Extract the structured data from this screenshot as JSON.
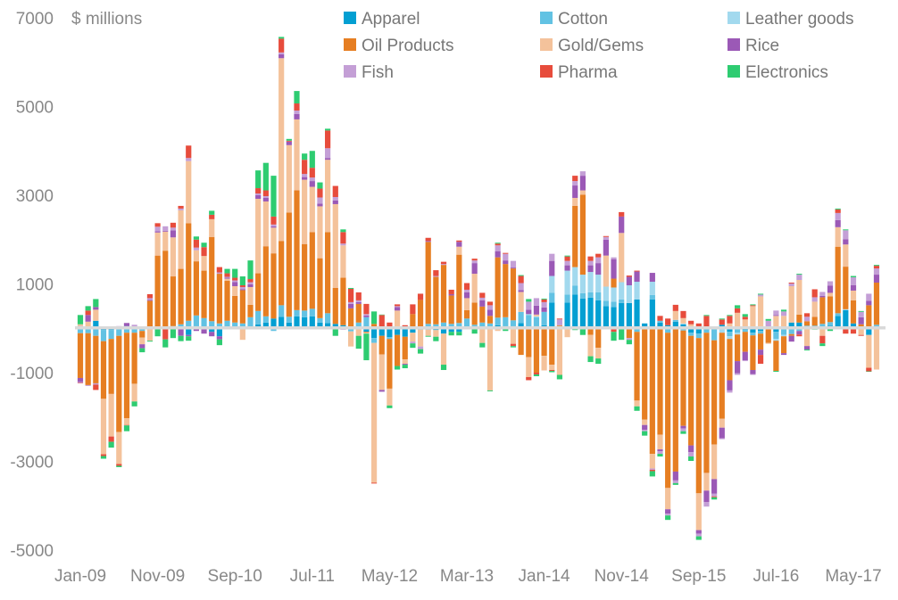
{
  "chart_data": {
    "type": "bar",
    "stacked": true,
    "ylabel": "$ millions",
    "ylim": [
      -5000,
      7000
    ],
    "yticks": [
      7000,
      5000,
      3000,
      1000,
      -1000,
      -3000,
      -5000
    ],
    "xtick_labels": [
      "Jan-09",
      "Nov-09",
      "Sep-10",
      "Jul-11",
      "May-12",
      "Mar-13",
      "Jan-14",
      "Nov-14",
      "Sep-15",
      "Jul-16",
      "May-17"
    ],
    "grid": false,
    "legend_position": "top",
    "series": [
      {
        "name": "Apparel",
        "color": "#039fd2"
      },
      {
        "name": "Cotton",
        "color": "#62c2e3"
      },
      {
        "name": "Leather goods",
        "color": "#a2d9ee"
      },
      {
        "name": "Oil Products",
        "color": "#e67e22"
      },
      {
        "name": "Gold/Gems",
        "color": "#f4c29b"
      },
      {
        "name": "Rice",
        "color": "#9b59b6"
      },
      {
        "name": "Fish",
        "color": "#c49fd6"
      },
      {
        "name": "Pharma",
        "color": "#e74c3c"
      },
      {
        "name": "Electronics",
        "color": "#2ecc71"
      }
    ],
    "categories": [
      "Jan-09",
      "Feb-09",
      "Mar-09",
      "Apr-09",
      "May-09",
      "Jun-09",
      "Jul-09",
      "Aug-09",
      "Sep-09",
      "Oct-09",
      "Nov-09",
      "Dec-09",
      "Jan-10",
      "Feb-10",
      "Mar-10",
      "Apr-10",
      "May-10",
      "Jun-10",
      "Jul-10",
      "Aug-10",
      "Sep-10",
      "Oct-10",
      "Nov-10",
      "Dec-10",
      "Jan-11",
      "Feb-11",
      "Mar-11",
      "Apr-11",
      "May-11",
      "Jun-11",
      "Jul-11",
      "Aug-11",
      "Sep-11",
      "Oct-11",
      "Nov-11",
      "Dec-11",
      "Jan-12",
      "Feb-12",
      "Mar-12",
      "Apr-12",
      "May-12",
      "Jun-12",
      "Jul-12",
      "Aug-12",
      "Sep-12",
      "Oct-12",
      "Nov-12",
      "Dec-12",
      "Jan-13",
      "Feb-13",
      "Mar-13",
      "Apr-13",
      "May-13",
      "Jun-13",
      "Jul-13",
      "Aug-13",
      "Sep-13",
      "Oct-13",
      "Nov-13",
      "Dec-13",
      "Jan-14",
      "Feb-14",
      "Mar-14",
      "Apr-14",
      "May-14",
      "Jun-14",
      "Jul-14",
      "Aug-14",
      "Sep-14",
      "Oct-14",
      "Nov-14",
      "Dec-14",
      "Jan-15",
      "Feb-15",
      "Mar-15",
      "Apr-15",
      "May-15",
      "Jun-15",
      "Jul-15",
      "Aug-15",
      "Sep-15",
      "Oct-15",
      "Nov-15",
      "Dec-15",
      "Jan-16",
      "Feb-16",
      "Mar-16",
      "Apr-16",
      "May-16",
      "Jun-16",
      "Jul-16",
      "Aug-16",
      "Sep-16",
      "Oct-16",
      "Nov-16",
      "Dec-16",
      "Jan-17",
      "Feb-17",
      "Mar-17",
      "Apr-17",
      "May-17",
      "Jun-17",
      "Jul-17",
      "Aug-17"
    ],
    "values_by_month_series_order": [
      [
        50,
        -110,
        0,
        -1010,
        40,
        -90,
        -20,
        -10,
        210
      ],
      [
        0,
        -110,
        0,
        -1170,
        150,
        150,
        -20,
        100,
        100
      ],
      [
        170,
        -170,
        0,
        -1070,
        250,
        60,
        -30,
        -120,
        180
      ],
      [
        -40,
        -250,
        0,
        -1300,
        -1250,
        0,
        0,
        -40,
        -60
      ],
      [
        -40,
        -200,
        0,
        -1240,
        -960,
        20,
        20,
        -120,
        -130
      ],
      [
        0,
        -170,
        0,
        -2170,
        -720,
        30,
        20,
        -40,
        -30
      ],
      [
        50,
        -100,
        0,
        -1930,
        -150,
        70,
        0,
        -10,
        -130
      ],
      [
        0,
        -100,
        0,
        -1150,
        -400,
        40,
        40,
        0,
        -110
      ],
      [
        0,
        -60,
        0,
        -150,
        -150,
        -90,
        20,
        0,
        -90
      ],
      [
        0,
        0,
        0,
        620,
        -280,
        20,
        40,
        90,
        -20
      ],
      [
        20,
        0,
        0,
        1620,
        520,
        30,
        100,
        80,
        -180
      ],
      [
        0,
        0,
        0,
        1750,
        430,
        20,
        100,
        -250,
        -180
      ],
      [
        0,
        50,
        0,
        1120,
        880,
        160,
        60,
        110,
        -220
      ],
      [
        0,
        90,
        0,
        1250,
        1320,
        -170,
        40,
        60,
        -120
      ],
      [
        -150,
        170,
        0,
        2200,
        1400,
        -30,
        70,
        280,
        -100
      ],
      [
        50,
        240,
        0,
        1220,
        250,
        -60,
        60,
        180,
        70
      ],
      [
        0,
        230,
        0,
        1070,
        330,
        -120,
        0,
        200,
        100
      ],
      [
        -80,
        160,
        0,
        1900,
        400,
        -100,
        0,
        100,
        90
      ],
      [
        -180,
        110,
        0,
        1120,
        0,
        -70,
        30,
        120,
        -130
      ],
      [
        0,
        170,
        0,
        900,
        50,
        20,
        20,
        80,
        100
      ],
      [
        0,
        130,
        0,
        600,
        220,
        90,
        40,
        60,
        200
      ],
      [
        0,
        110,
        0,
        750,
        -260,
        20,
        50,
        40,
        200
      ],
      [
        0,
        250,
        0,
        280,
        400,
        60,
        50,
        70,
        420
      ],
      [
        90,
        300,
        0,
        850,
        1680,
        80,
        40,
        120,
        400
      ],
      [
        130,
        140,
        0,
        1580,
        1010,
        80,
        40,
        130,
        620
      ],
      [
        220,
        -60,
        0,
        1470,
        580,
        30,
        40,
        180,
        920
      ],
      [
        260,
        260,
        0,
        1450,
        4120,
        90,
        40,
        310,
        40
      ],
      [
        130,
        130,
        0,
        2350,
        1520,
        80,
        0,
        20,
        40
      ],
      [
        270,
        140,
        0,
        2700,
        1600,
        120,
        80,
        160,
        280
      ],
      [
        250,
        150,
        0,
        1500,
        1450,
        60,
        70,
        320,
        140
      ],
      [
        270,
        170,
        0,
        1730,
        1020,
        130,
        80,
        220,
        380
      ],
      [
        130,
        100,
        0,
        1350,
        1170,
        60,
        140,
        200,
        140
      ],
      [
        120,
        220,
        0,
        1830,
        1630,
        40,
        220,
        400,
        40
      ],
      [
        100,
        0,
        0,
        810,
        1890,
        80,
        80,
        250,
        -170
      ],
      [
        70,
        0,
        0,
        1070,
        730,
        -30,
        40,
        260,
        60
      ],
      [
        0,
        -70,
        0,
        450,
        -340,
        100,
        40,
        300,
        20
      ],
      [
        0,
        130,
        0,
        420,
        -170,
        40,
        40,
        180,
        -290
      ],
      [
        -80,
        250,
        0,
        -20,
        -20,
        40,
        30,
        230,
        -600
      ],
      [
        -220,
        -110,
        0,
        100,
        -3150,
        0,
        0,
        -20,
        280
      ],
      [
        -170,
        0,
        0,
        -420,
        -800,
        -40,
        20,
        280,
        10
      ],
      [
        -200,
        -40,
        0,
        -1120,
        -380,
        0,
        0,
        130,
        -60
      ],
      [
        -150,
        0,
        0,
        -700,
        400,
        80,
        20,
        40,
        -80
      ],
      [
        -190,
        0,
        0,
        -510,
        -100,
        -20,
        0,
        70,
        -80
      ],
      [
        -100,
        0,
        0,
        320,
        -200,
        0,
        -40,
        220,
        -100
      ],
      [
        -30,
        40,
        0,
        600,
        -380,
        0,
        -60,
        140,
        -100
      ],
      [
        -30,
        100,
        0,
        1850,
        -140,
        20,
        0,
        70,
        -20
      ],
      [
        -40,
        90,
        0,
        1070,
        -150,
        0,
        20,
        130,
        -100
      ],
      [
        -120,
        130,
        0,
        1300,
        -700,
        0,
        20,
        50,
        -120
      ],
      [
        -80,
        100,
        0,
        640,
        0,
        30,
        0,
        100,
        -80
      ],
      [
        -80,
        120,
        0,
        1540,
        180,
        110,
        0,
        30,
        -80
      ],
      [
        20,
        200,
        0,
        190,
        270,
        130,
        60,
        150,
        0
      ],
      [
        0,
        80,
        0,
        500,
        650,
        240,
        60,
        40,
        -120
      ],
      [
        0,
        130,
        0,
        360,
        -330,
        140,
        60,
        110,
        -100
      ],
      [
        30,
        80,
        0,
        170,
        -1400,
        140,
        100,
        80,
        -20
      ],
      [
        70,
        170,
        0,
        1360,
        -60,
        140,
        130,
        40,
        20
      ],
      [
        50,
        200,
        0,
        1200,
        0,
        80,
        150,
        20,
        -60
      ],
      [
        50,
        130,
        0,
        1170,
        -350,
        20,
        150,
        -50,
        -30
      ],
      [
        120,
        250,
        0,
        -600,
        450,
        40,
        160,
        160,
        20
      ],
      [
        20,
        280,
        20,
        -650,
        -450,
        100,
        180,
        -70,
        60
      ],
      [
        50,
        200,
        20,
        -1000,
        40,
        200,
        170,
        -40,
        -40
      ],
      [
        70,
        300,
        0,
        -620,
        -330,
        100,
        120,
        60,
        20
      ],
      [
        580,
        220,
        380,
        -820,
        -120,
        340,
        160,
        -20,
        -30
      ],
      [
        20,
        0,
        30,
        20,
        -1050,
        0,
        130,
        20,
        -100
      ],
      [
        580,
        180,
        540,
        0,
        -200,
        120,
        100,
        100,
        20
      ],
      [
        760,
        200,
        420,
        1380,
        180,
        280,
        100,
        120,
        -40
      ],
      [
        670,
        120,
        420,
        1800,
        100,
        330,
        100,
        0,
        -150
      ],
      [
        690,
        120,
        460,
        -150,
        -480,
        150,
        100,
        100,
        -130
      ],
      [
        630,
        180,
        400,
        -440,
        -240,
        260,
        130,
        80,
        -120
      ],
      [
        500,
        120,
        320,
        0,
        700,
        360,
        60,
        20,
        0
      ],
      [
        480,
        120,
        320,
        200,
        0,
        440,
        40,
        -80,
        -200
      ],
      [
        570,
        80,
        390,
        0,
        1110,
        370,
        0,
        100,
        -260
      ],
      [
        570,
        0,
        400,
        -220,
        0,
        190,
        -40,
        30,
        -100
      ],
      [
        650,
        -80,
        400,
        -1550,
        -130,
        230,
        0,
        20,
        -100
      ],
      [
        110,
        0,
        0,
        -2060,
        -120,
        -110,
        -30,
        0,
        -100
      ],
      [
        650,
        100,
        300,
        -2830,
        -330,
        200,
        -30,
        -30,
        -120
      ],
      [
        130,
        40,
        0,
        -2400,
        -330,
        -40,
        -60,
        110,
        -60
      ],
      [
        70,
        -100,
        0,
        -3500,
        -480,
        -100,
        -40,
        150,
        -100
      ],
      [
        150,
        40,
        0,
        -3230,
        200,
        -200,
        -60,
        140,
        -40
      ],
      [
        90,
        -50,
        20,
        -2150,
        120,
        -60,
        -60,
        160,
        -60
      ],
      [
        -100,
        -70,
        0,
        -2470,
        90,
        -150,
        -100,
        80,
        -100
      ],
      [
        -120,
        -100,
        0,
        -3500,
        -830,
        -80,
        -60,
        110,
        -80
      ],
      [
        30,
        -100,
        0,
        -3160,
        -400,
        -260,
        -100,
        250,
        20
      ],
      [
        0,
        -270,
        0,
        -2350,
        -780,
        -330,
        -60,
        -20,
        -50
      ],
      [
        80,
        0,
        -100,
        -1940,
        -200,
        -240,
        -20,
        120,
        20
      ],
      [
        -80,
        -100,
        -60,
        -930,
        110,
        -230,
        -50,
        170,
        20
      ],
      [
        0,
        -100,
        -40,
        -600,
        350,
        -270,
        -40,
        100,
        70
      ],
      [
        -40,
        -40,
        0,
        -450,
        200,
        -190,
        -20,
        60,
        60
      ],
      [
        -100,
        -60,
        0,
        -780,
        500,
        -90,
        -20,
        20,
        20
      ],
      [
        -60,
        -60,
        0,
        -360,
        720,
        -120,
        40,
        -200,
        20
      ],
      [
        0,
        0,
        0,
        -330,
        -20,
        40,
        130,
        0,
        40
      ],
      [
        -80,
        -160,
        -40,
        -680,
        280,
        20,
        100,
        0,
        -20
      ],
      [
        40,
        -150,
        -30,
        -380,
        240,
        -40,
        100,
        0,
        40
      ],
      [
        130,
        -130,
        0,
        -40,
        820,
        -130,
        60,
        20,
        0
      ],
      [
        130,
        -60,
        0,
        180,
        780,
        -80,
        120,
        -40,
        20
      ],
      [
        0,
        60,
        0,
        100,
        -400,
        -80,
        100,
        80,
        -20
      ],
      [
        0,
        60,
        0,
        200,
        340,
        0,
        100,
        180,
        -30
      ],
      [
        20,
        80,
        0,
        600,
        -170,
        30,
        90,
        -170,
        -60
      ],
      [
        60,
        80,
        0,
        580,
        80,
        160,
        100,
        0,
        -60
      ],
      [
        280,
        60,
        0,
        1500,
        440,
        160,
        160,
        80,
        20
      ],
      [
        410,
        0,
        20,
        960,
        500,
        120,
        200,
        -120,
        20
      ],
      [
        110,
        0,
        0,
        520,
        220,
        120,
        180,
        -120,
        30
      ],
      [
        0,
        0,
        0,
        90,
        -150,
        160,
        120,
        -20,
        20
      ],
      [
        -150,
        20,
        0,
        500,
        -740,
        100,
        160,
        -80,
        -10
      ],
      [
        0,
        80,
        0,
        950,
        -930,
        180,
        140,
        60,
        20
      ]
    ]
  }
}
